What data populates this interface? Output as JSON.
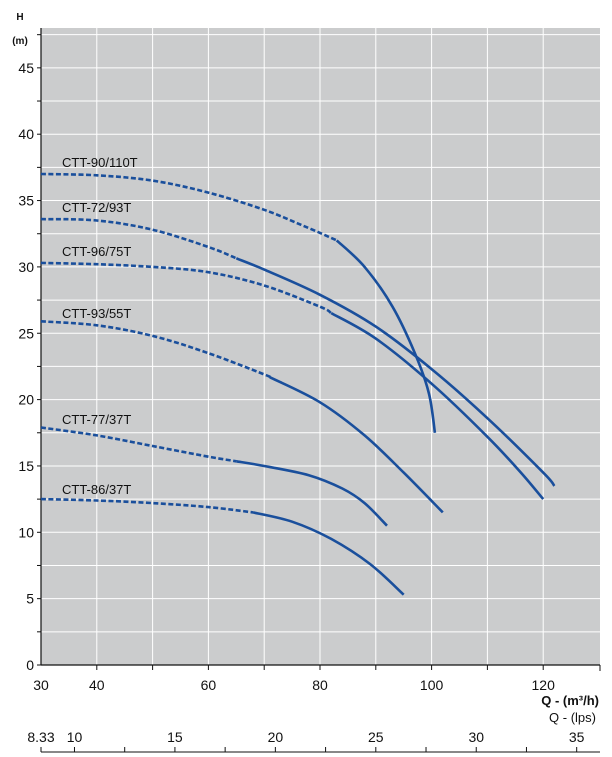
{
  "chart_data": {
    "type": "line",
    "y_axis": {
      "label": "H",
      "unit": "(m)",
      "range": [
        0,
        48
      ],
      "ticks": [
        0,
        5,
        10,
        15,
        20,
        25,
        30,
        35,
        40,
        45
      ]
    },
    "x_axis": {
      "label": "Q - (m³/h)",
      "range": [
        30,
        130
      ],
      "ticks": [
        30,
        40,
        60,
        80,
        100,
        120
      ]
    },
    "x2_axis": {
      "label": "Q - (lps)",
      "ticks": [
        8.33,
        10,
        15,
        20,
        25,
        30,
        35
      ]
    },
    "grid": true,
    "series": [
      {
        "name": "CTT-90/110T",
        "color": "#1a4f9c",
        "points": [
          [
            30,
            37.0
          ],
          [
            40,
            36.9
          ],
          [
            50,
            36.5
          ],
          [
            60,
            35.6
          ],
          [
            70,
            34.3
          ],
          [
            77,
            33.1
          ],
          [
            83,
            32.0
          ],
          [
            88,
            30.0
          ],
          [
            93,
            27.0
          ],
          [
            97,
            23.5
          ],
          [
            99.5,
            20.5
          ],
          [
            100.6,
            17.5
          ]
        ]
      },
      {
        "name": "CTT-72/93T",
        "color": "#1a4f9c",
        "points": [
          [
            30,
            33.6
          ],
          [
            40,
            33.5
          ],
          [
            50,
            32.8
          ],
          [
            60,
            31.5
          ],
          [
            70,
            29.8
          ],
          [
            80,
            27.9
          ],
          [
            90,
            25.5
          ],
          [
            100,
            22.3
          ],
          [
            110,
            18.6
          ],
          [
            120,
            14.5
          ],
          [
            122,
            13.5
          ]
        ]
      },
      {
        "name": "CTT-96/75T",
        "color": "#1a4f9c",
        "points": [
          [
            30,
            30.3
          ],
          [
            40,
            30.2
          ],
          [
            50,
            30.0
          ],
          [
            60,
            29.6
          ],
          [
            70,
            28.6
          ],
          [
            80,
            27.0
          ],
          [
            90,
            24.6
          ],
          [
            100,
            21.2
          ],
          [
            110,
            17.2
          ],
          [
            116,
            14.5
          ],
          [
            120,
            12.5
          ]
        ]
      },
      {
        "name": "CTT-93/55T",
        "color": "#1a4f9c",
        "points": [
          [
            30,
            25.9
          ],
          [
            40,
            25.6
          ],
          [
            50,
            24.8
          ],
          [
            60,
            23.5
          ],
          [
            70,
            21.9
          ],
          [
            80,
            19.8
          ],
          [
            88,
            17.3
          ],
          [
            95,
            14.5
          ],
          [
            102,
            11.5
          ]
        ]
      },
      {
        "name": "CTT-77/37T",
        "color": "#1a4f9c",
        "points": [
          [
            30,
            17.9
          ],
          [
            40,
            17.3
          ],
          [
            50,
            16.5
          ],
          [
            60,
            15.7
          ],
          [
            70,
            15.0
          ],
          [
            78,
            14.3
          ],
          [
            84,
            13.3
          ],
          [
            88,
            12.2
          ],
          [
            92,
            10.5
          ]
        ]
      },
      {
        "name": "CTT-86/37T",
        "color": "#1a4f9c",
        "points": [
          [
            30,
            12.5
          ],
          [
            40,
            12.4
          ],
          [
            50,
            12.2
          ],
          [
            60,
            11.9
          ],
          [
            68,
            11.5
          ],
          [
            75,
            10.8
          ],
          [
            82,
            9.5
          ],
          [
            89,
            7.6
          ],
          [
            95,
            5.3
          ]
        ]
      }
    ]
  }
}
